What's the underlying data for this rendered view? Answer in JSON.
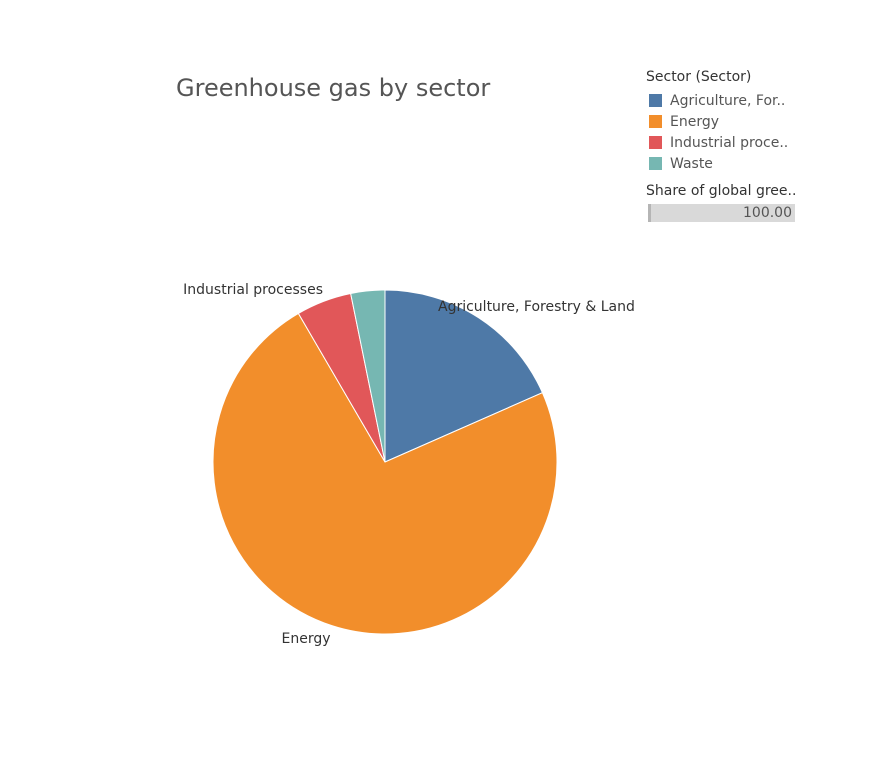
{
  "chart_data": {
    "type": "pie",
    "title": "Greenhouse gas by sector",
    "categories": [
      "Agriculture, Forestry & Land",
      "Energy",
      "Industrial processes",
      "Waste"
    ],
    "values": [
      18.4,
      73.2,
      5.2,
      3.2
    ],
    "colors": [
      "#4e79a7",
      "#f28e2b",
      "#e15759",
      "#76b7b2"
    ],
    "slice_labels": [
      "Agriculture, Forestry & Land",
      "Energy",
      "Industrial processes",
      ""
    ]
  },
  "legend": {
    "title": "Sector (Sector)",
    "items": [
      "Agriculture, For..",
      "Energy",
      "Industrial proce..",
      "Waste"
    ]
  },
  "share": {
    "title": "Share of global gree..",
    "value": "100.00"
  }
}
